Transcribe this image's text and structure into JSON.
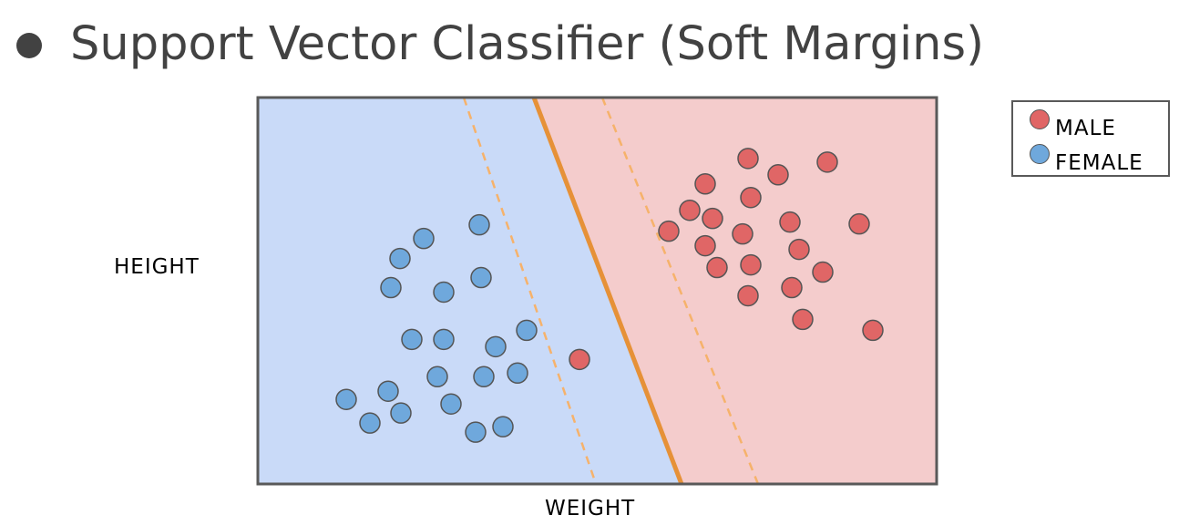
{
  "title": "Support Vector Classifier (Soft Margins)",
  "icons": {
    "bullet": "bullet-dot-icon",
    "legend_marker": "circle-icon"
  },
  "colors": {
    "male_region": "#f4cccc",
    "female_region": "#c9daf8",
    "male_point": "#e06666",
    "female_point": "#6fa8dc",
    "boundary": "#e69138",
    "margin": "#f6b26b"
  },
  "chart_data": {
    "type": "scatter",
    "xlabel": "WEIGHT",
    "ylabel": "HEIGHT",
    "xlim": [
      0,
      745
    ],
    "ylim": [
      0,
      425
    ],
    "grid": false,
    "legend_position": "right",
    "series": [
      {
        "name": "MALE",
        "points": [
          [
            538,
            358
          ],
          [
            571,
            340
          ],
          [
            625,
            354
          ],
          [
            491,
            330
          ],
          [
            541,
            315
          ],
          [
            474,
            301
          ],
          [
            499,
            292
          ],
          [
            584,
            288
          ],
          [
            660,
            286
          ],
          [
            451,
            278
          ],
          [
            532,
            275
          ],
          [
            491,
            262
          ],
          [
            594,
            258
          ],
          [
            504,
            238
          ],
          [
            541,
            241
          ],
          [
            620,
            233
          ],
          [
            538,
            207
          ],
          [
            586,
            216
          ],
          [
            675,
            169
          ],
          [
            598,
            181
          ],
          [
            353,
            137
          ]
        ]
      },
      {
        "name": "FEMALE",
        "points": [
          [
            243,
            285
          ],
          [
            182,
            270
          ],
          [
            156,
            248
          ],
          [
            245,
            227
          ],
          [
            146,
            216
          ],
          [
            204,
            211
          ],
          [
            295,
            169
          ],
          [
            169,
            159
          ],
          [
            204,
            159
          ],
          [
            261,
            151
          ],
          [
            197,
            118
          ],
          [
            248,
            118
          ],
          [
            285,
            122
          ],
          [
            97,
            93
          ],
          [
            143,
            102
          ],
          [
            157,
            78
          ],
          [
            212,
            88
          ],
          [
            123,
            67
          ],
          [
            239,
            57
          ],
          [
            269,
            63
          ]
        ]
      }
    ],
    "decision_boundary": {
      "top": [
        303,
        425
      ],
      "bottom": [
        465,
        0
      ]
    },
    "margin_lower": {
      "top": [
        226,
        425
      ],
      "bottom": [
        371,
        0
      ]
    },
    "margin_upper": {
      "top": [
        378,
        425
      ],
      "bottom": [
        549,
        0
      ]
    }
  }
}
